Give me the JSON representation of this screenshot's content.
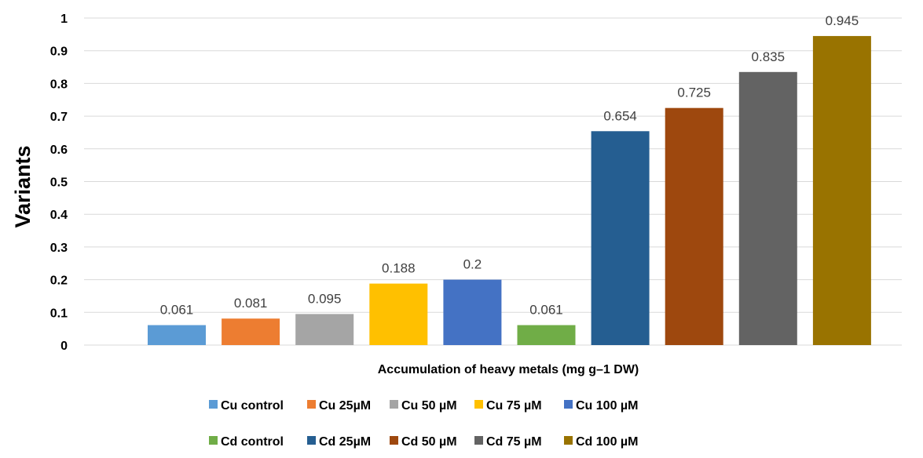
{
  "chart_data": {
    "type": "bar",
    "title": "",
    "xlabel": "Accumulation of heavy metals (mg g–1 DW)",
    "ylabel": "Variants",
    "ylim": [
      0,
      1
    ],
    "yticks": [
      "0",
      "0.1",
      "0.2",
      "0.3",
      "0.4",
      "0.5",
      "0.6",
      "0.7",
      "0.8",
      "0.9",
      "1"
    ],
    "grid": true,
    "legend_position": "bottom",
    "series": [
      {
        "name": "Cu control",
        "value": 0.061,
        "label": "0.061",
        "color": "#5B9BD5"
      },
      {
        "name": "Cu 25µM",
        "value": 0.081,
        "label": "0.081",
        "color": "#ED7D31"
      },
      {
        "name": "Cu 50 µM",
        "value": 0.095,
        "label": "0.095",
        "color": "#A5A5A5"
      },
      {
        "name": "Cu 75 µM",
        "value": 0.188,
        "label": "0.188",
        "color": "#FFC000"
      },
      {
        "name": "Cu 100 µM",
        "value": 0.2,
        "label": "0.2",
        "color": "#4472C4"
      },
      {
        "name": "Cd control",
        "value": 0.061,
        "label": "0.061",
        "color": "#70AD47"
      },
      {
        "name": "Cd 25µM",
        "value": 0.654,
        "label": "0.654",
        "color": "#255E91"
      },
      {
        "name": "Cd 50 µM",
        "value": 0.725,
        "label": "0.725",
        "color": "#9E480E"
      },
      {
        "name": "Cd 75 µM",
        "value": 0.835,
        "label": "0.835",
        "color": "#636363"
      },
      {
        "name": "Cd 100 µM",
        "value": 0.945,
        "label": "0.945",
        "color": "#997300"
      }
    ]
  }
}
